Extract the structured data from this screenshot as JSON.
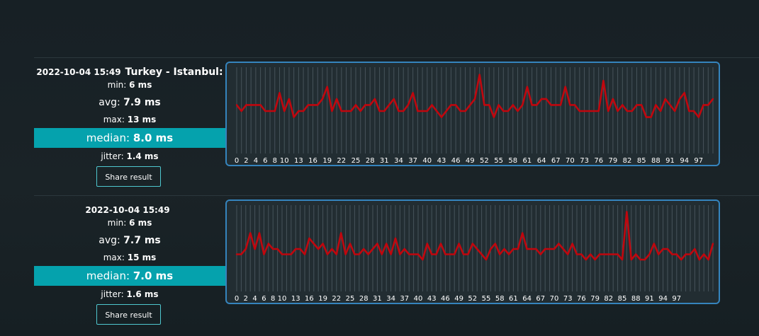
{
  "results": [
    {
      "timestamp": "2022-10-04 15:49",
      "location": "Turkey - Istanbul:",
      "min_label": "min:",
      "min_value": "6 ms",
      "avg_label": "avg:",
      "avg_value": "7.9 ms",
      "max_label": "max:",
      "max_value": "13 ms",
      "median_label": "median:",
      "median_value": "8.0 ms",
      "jitter_label": "jitter:",
      "jitter_value": "1.4 ms",
      "share_label": "Share result"
    },
    {
      "timestamp": "2022-10-04 15:49",
      "location": "",
      "min_label": "min:",
      "min_value": "6 ms",
      "avg_label": "avg:",
      "avg_value": "7.7 ms",
      "max_label": "max:",
      "max_value": "15 ms",
      "median_label": "median:",
      "median_value": "7.0 ms",
      "jitter_label": "jitter:",
      "jitter_value": "1.6 ms",
      "share_label": "Share result"
    }
  ],
  "colors": {
    "line": "#c0070e",
    "median_bg": "#05a2ad",
    "chart_border": "#3584bd",
    "gridline": "#46535a"
  },
  "chart_data": [
    {
      "type": "line",
      "ylim": [
        0,
        14
      ],
      "grid": true,
      "x_tick_labels": [
        "0",
        "2",
        "4",
        "6",
        "8",
        "10",
        "13",
        "16",
        "19",
        "22",
        "25",
        "28",
        "31",
        "34",
        "37",
        "40",
        "43",
        "46",
        "49",
        "52",
        "55",
        "58",
        "61",
        "64",
        "67",
        "70",
        "73",
        "76",
        "79",
        "82",
        "85",
        "88",
        "91",
        "94",
        "97"
      ],
      "series": [
        {
          "values": [
            8,
            7,
            8,
            8,
            8,
            8,
            7,
            7,
            7,
            10,
            7,
            9,
            6,
            7,
            7,
            8,
            8,
            8,
            9,
            11,
            7,
            9,
            7,
            7,
            7,
            8,
            7,
            8,
            8,
            9,
            7,
            7,
            8,
            9,
            7,
            7,
            8,
            10,
            7,
            7,
            7,
            8,
            7,
            6,
            7,
            8,
            8,
            7,
            7,
            8,
            9,
            13,
            8,
            8,
            6,
            8,
            7,
            7,
            8,
            7,
            8,
            11,
            8,
            8,
            9,
            9,
            8,
            8,
            8,
            11,
            8,
            8,
            7,
            7,
            7,
            7,
            7,
            12,
            7,
            9,
            7,
            8,
            7,
            7,
            8,
            8,
            6,
            6,
            8,
            7,
            9,
            8,
            7,
            9,
            10,
            7,
            7,
            6,
            8,
            8,
            9
          ]
        }
      ]
    },
    {
      "type": "line",
      "ylim": [
        0,
        16
      ],
      "grid": true,
      "x_tick_labels": [
        "0",
        "2",
        "4",
        "6",
        "8",
        "10",
        "13",
        "16",
        "19",
        "22",
        "25",
        "28",
        "31",
        "34",
        "37",
        "40",
        "43",
        "46",
        "49",
        "52",
        "55",
        "58",
        "61",
        "64",
        "67",
        "70",
        "73",
        "76",
        "79",
        "82",
        "85",
        "88",
        "91",
        "94",
        "97"
      ],
      "series": [
        {
          "values": [
            7,
            7,
            8,
            11,
            8,
            11,
            7,
            9,
            8,
            8,
            7,
            7,
            7,
            8,
            8,
            7,
            10,
            9,
            8,
            9,
            7,
            8,
            7,
            11,
            7,
            9,
            7,
            7,
            8,
            7,
            8,
            9,
            7,
            9,
            7,
            10,
            7,
            8,
            7,
            7,
            7,
            6,
            9,
            7,
            7,
            9,
            7,
            7,
            7,
            9,
            7,
            7,
            9,
            8,
            7,
            6,
            8,
            9,
            7,
            8,
            7,
            8,
            8,
            11,
            8,
            8,
            8,
            7,
            8,
            8,
            8,
            9,
            8,
            7,
            9,
            7,
            7,
            6,
            7,
            6,
            7,
            7,
            7,
            7,
            7,
            6,
            15,
            6,
            7,
            6,
            6,
            7,
            9,
            7,
            8,
            8,
            7,
            7,
            6,
            7,
            7,
            8,
            6,
            7,
            6,
            9
          ]
        }
      ]
    }
  ]
}
